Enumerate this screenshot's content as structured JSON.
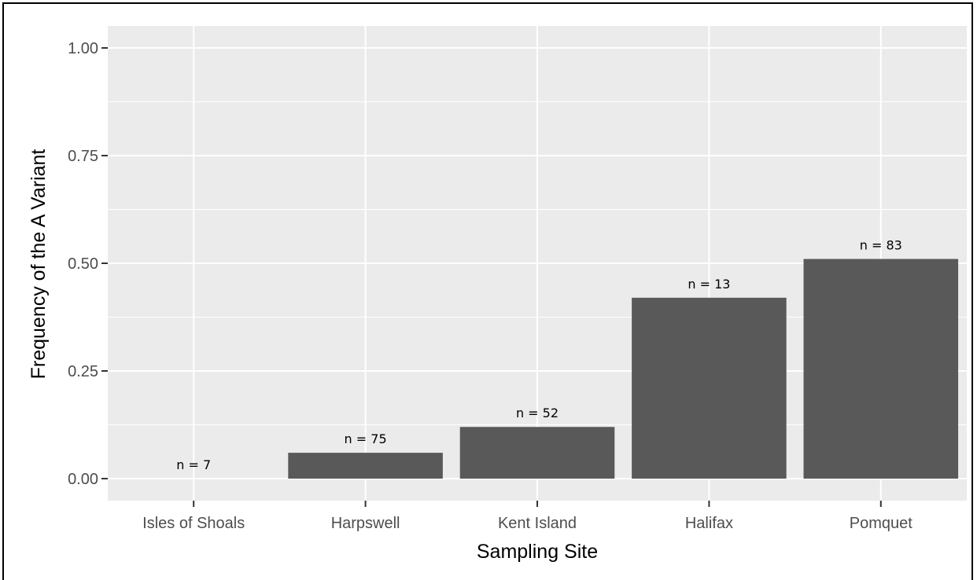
{
  "chart_data": {
    "type": "bar",
    "categories": [
      "Isles of Shoals",
      "Harpswell",
      "Kent Island",
      "Halifax",
      "Pomquet"
    ],
    "values": [
      0.0,
      0.06,
      0.12,
      0.42,
      0.51
    ],
    "bar_labels": [
      "n = 7",
      "n = 75",
      "n = 52",
      "n = 13",
      "n = 83"
    ],
    "xlabel": "Sampling Site",
    "ylabel": "Frequency of the A Variant",
    "ylim": [
      -0.05,
      1.05
    ],
    "yticks": [
      0.0,
      0.25,
      0.5,
      0.75,
      1.0
    ],
    "ytick_labels": [
      "0.00",
      "0.25",
      "0.50",
      "0.75",
      "1.00"
    ],
    "grid": true,
    "colors": {
      "panel": "#ebebeb",
      "grid": "#ffffff",
      "bar": "#595959"
    }
  }
}
